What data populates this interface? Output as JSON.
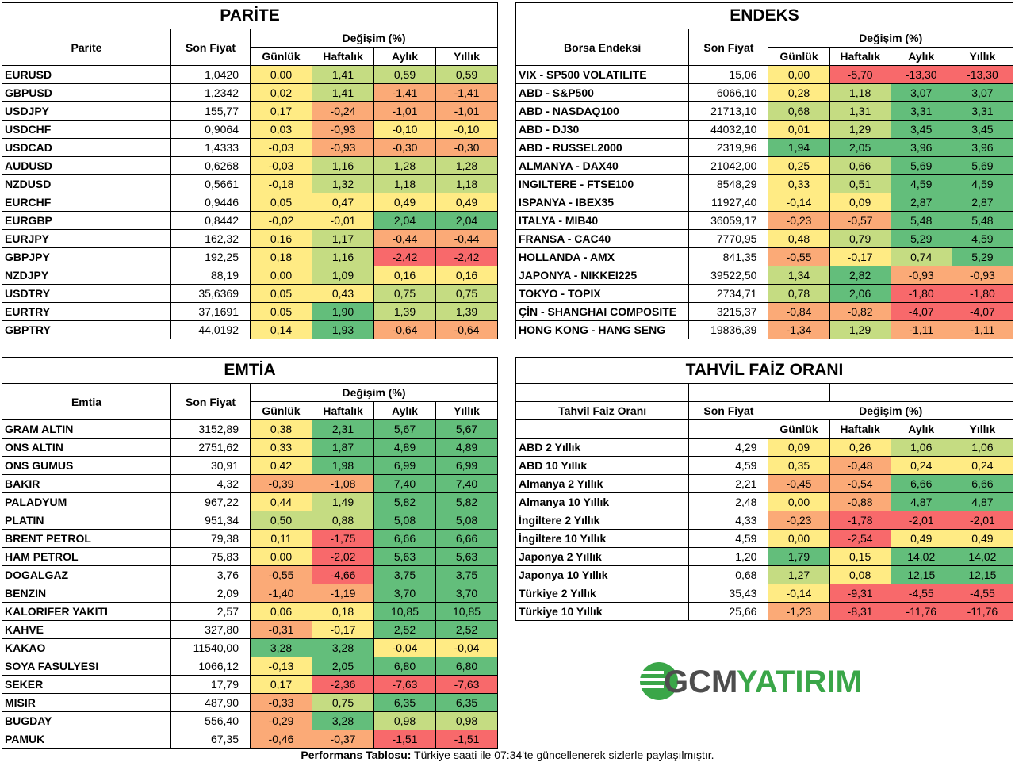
{
  "headers": {
    "son_fiyat": "Son Fiyat",
    "degisim": "Değişim (%)",
    "periods": [
      "Günlük",
      "Haftalık",
      "Aylık",
      "Yıllık"
    ]
  },
  "colors": {
    "red": "#f8696b",
    "orange": "#fbaa77",
    "yellow": "#ffeb84",
    "light_green": "#c5dc82",
    "green": "#63be7b"
  },
  "parite": {
    "title": "PARİTE",
    "name_header": "Parite",
    "rows": [
      {
        "name": "EURUSD",
        "price": "1,0420",
        "d": "0,00",
        "w": "1,41",
        "m": "0,59",
        "y": "0,59"
      },
      {
        "name": "GBPUSD",
        "price": "1,2342",
        "d": "0,02",
        "w": "1,41",
        "m": "-1,41",
        "y": "-1,41"
      },
      {
        "name": "USDJPY",
        "price": "155,77",
        "d": "0,17",
        "w": "-0,24",
        "m": "-1,01",
        "y": "-1,01"
      },
      {
        "name": "USDCHF",
        "price": "0,9064",
        "d": "0,03",
        "w": "-0,93",
        "m": "-0,10",
        "y": "-0,10"
      },
      {
        "name": "USDCAD",
        "price": "1,4333",
        "d": "-0,03",
        "w": "-0,93",
        "m": "-0,30",
        "y": "-0,30"
      },
      {
        "name": "AUDUSD",
        "price": "0,6268",
        "d": "-0,03",
        "w": "1,16",
        "m": "1,28",
        "y": "1,28"
      },
      {
        "name": "NZDUSD",
        "price": "0,5661",
        "d": "-0,18",
        "w": "1,32",
        "m": "1,18",
        "y": "1,18"
      },
      {
        "name": "EURCHF",
        "price": "0,9446",
        "d": "0,05",
        "w": "0,47",
        "m": "0,49",
        "y": "0,49"
      },
      {
        "name": "EURGBP",
        "price": "0,8442",
        "d": "-0,02",
        "w": "-0,01",
        "m": "2,04",
        "y": "2,04"
      },
      {
        "name": "EURJPY",
        "price": "162,32",
        "d": "0,16",
        "w": "1,17",
        "m": "-0,44",
        "y": "-0,44"
      },
      {
        "name": "GBPJPY",
        "price": "192,25",
        "d": "0,18",
        "w": "1,16",
        "m": "-2,42",
        "y": "-2,42"
      },
      {
        "name": "NZDJPY",
        "price": "88,19",
        "d": "0,00",
        "w": "1,09",
        "m": "0,16",
        "y": "0,16"
      },
      {
        "name": "USDTRY",
        "price": "35,6369",
        "d": "0,05",
        "w": "0,43",
        "m": "0,75",
        "y": "0,75"
      },
      {
        "name": "EURTRY",
        "price": "37,1691",
        "d": "0,05",
        "w": "1,90",
        "m": "1,39",
        "y": "1,39"
      },
      {
        "name": "GBPTRY",
        "price": "44,0192",
        "d": "0,14",
        "w": "1,93",
        "m": "-0,64",
        "y": "-0,64"
      }
    ]
  },
  "endeks": {
    "title": "ENDEKS",
    "name_header": "Borsa Endeksi",
    "rows": [
      {
        "name": "VIX  - SP500 VOLATILITE",
        "price": "15,06",
        "d": "0,00",
        "w": "-5,70",
        "m": "-13,30",
        "y": "-13,30"
      },
      {
        "name": "ABD - S&P500",
        "price": "6066,10",
        "d": "0,28",
        "w": "1,18",
        "m": "3,07",
        "y": "3,07"
      },
      {
        "name": "ABD - NASDAQ100",
        "price": "21713,10",
        "d": "0,68",
        "w": "1,31",
        "m": "3,31",
        "y": "3,31"
      },
      {
        "name": "ABD - DJ30",
        "price": "44032,10",
        "d": "0,01",
        "w": "1,29",
        "m": "3,45",
        "y": "3,45"
      },
      {
        "name": "ABD - RUSSEL2000",
        "price": "2319,96",
        "d": "1,94",
        "w": "2,05",
        "m": "3,96",
        "y": "3,96"
      },
      {
        "name": "ALMANYA - DAX40",
        "price": "21042,00",
        "d": "0,25",
        "w": "0,66",
        "m": "5,69",
        "y": "5,69"
      },
      {
        "name": "INGILTERE - FTSE100",
        "price": "8548,29",
        "d": "0,33",
        "w": "0,51",
        "m": "4,59",
        "y": "4,59"
      },
      {
        "name": "ISPANYA - IBEX35",
        "price": "11927,40",
        "d": "-0,14",
        "w": "0,09",
        "m": "2,87",
        "y": "2,87"
      },
      {
        "name": "ITALYA - MIB40",
        "price": "36059,17",
        "d": "-0,23",
        "w": "-0,57",
        "m": "5,48",
        "y": "5,48"
      },
      {
        "name": "FRANSA - CAC40",
        "price": "7770,95",
        "d": "0,48",
        "w": "0,79",
        "m": "5,29",
        "y": "4,59"
      },
      {
        "name": "HOLLANDA - AMX",
        "price": "841,35",
        "d": "-0,55",
        "w": "-0,17",
        "m": "0,74",
        "y": "5,29"
      },
      {
        "name": "JAPONYA - NIKKEI225",
        "price": "39522,50",
        "d": "1,34",
        "w": "2,82",
        "m": "-0,93",
        "y": "-0,93"
      },
      {
        "name": "TOKYO - TOPIX",
        "price": "2734,71",
        "d": "0,78",
        "w": "2,06",
        "m": "-1,80",
        "y": "-1,80"
      },
      {
        "name": "ÇİN - SHANGHAI COMPOSITE",
        "price": "3215,37",
        "d": "-0,84",
        "w": "-0,82",
        "m": "-4,07",
        "y": "-4,07"
      },
      {
        "name": "HONG KONG - HANG SENG",
        "price": "19836,39",
        "d": "-1,34",
        "w": "1,29",
        "m": "-1,11",
        "y": "-1,11"
      }
    ]
  },
  "emtia": {
    "title": "EMTİA",
    "name_header": "Emtia",
    "rows": [
      {
        "name": "GRAM ALTIN",
        "price": "3152,89",
        "d": "0,38",
        "w": "2,31",
        "m": "5,67",
        "y": "5,67"
      },
      {
        "name": "ONS ALTIN",
        "price": "2751,62",
        "d": "0,33",
        "w": "1,87",
        "m": "4,89",
        "y": "4,89"
      },
      {
        "name": "ONS GUMUS",
        "price": "30,91",
        "d": "0,42",
        "w": "1,98",
        "m": "6,99",
        "y": "6,99"
      },
      {
        "name": "BAKIR",
        "price": "4,32",
        "d": "-0,39",
        "w": "-1,08",
        "m": "7,40",
        "y": "7,40"
      },
      {
        "name": "PALADYUM",
        "price": "967,22",
        "d": "0,44",
        "w": "1,49",
        "m": "5,82",
        "y": "5,82"
      },
      {
        "name": "PLATIN",
        "price": "951,34",
        "d": "0,50",
        "w": "0,88",
        "m": "5,08",
        "y": "5,08"
      },
      {
        "name": "BRENT PETROL",
        "price": "79,38",
        "d": "0,11",
        "w": "-1,75",
        "m": "6,66",
        "y": "6,66"
      },
      {
        "name": "HAM PETROL",
        "price": "75,83",
        "d": "0,00",
        "w": "-2,02",
        "m": "5,63",
        "y": "5,63"
      },
      {
        "name": "DOGALGAZ",
        "price": "3,76",
        "d": "-0,55",
        "w": "-4,66",
        "m": "3,75",
        "y": "3,75"
      },
      {
        "name": "BENZIN",
        "price": "2,09",
        "d": "-1,40",
        "w": "-1,19",
        "m": "3,70",
        "y": "3,70"
      },
      {
        "name": "KALORIFER YAKITI",
        "price": "2,57",
        "d": "0,06",
        "w": "0,18",
        "m": "10,85",
        "y": "10,85"
      },
      {
        "name": "KAHVE",
        "price": "327,80",
        "d": "-0,31",
        "w": "-0,17",
        "m": "2,52",
        "y": "2,52"
      },
      {
        "name": "KAKAO",
        "price": "11540,00",
        "d": "3,28",
        "w": "3,28",
        "m": "-0,04",
        "y": "-0,04"
      },
      {
        "name": "SOYA FASULYESI",
        "price": "1066,12",
        "d": "-0,13",
        "w": "2,05",
        "m": "6,80",
        "y": "6,80"
      },
      {
        "name": "SEKER",
        "price": "17,79",
        "d": "0,17",
        "w": "-2,36",
        "m": "-7,63",
        "y": "-7,63"
      },
      {
        "name": "MISIR",
        "price": "487,90",
        "d": "-0,33",
        "w": "0,75",
        "m": "6,35",
        "y": "6,35"
      },
      {
        "name": "BUGDAY",
        "price": "556,40",
        "d": "-0,29",
        "w": "3,28",
        "m": "0,98",
        "y": "0,98"
      },
      {
        "name": "PAMUK",
        "price": "67,35",
        "d": "-0,46",
        "w": "-0,37",
        "m": "-1,51",
        "y": "-1,51"
      }
    ]
  },
  "tahvil": {
    "title": "TAHVİL FAİZ ORANI",
    "name_header": "Tahvil Faiz Oranı",
    "rows": [
      {
        "name": "ABD 2 Yıllık",
        "price": "4,29",
        "d": "0,09",
        "w": "0,26",
        "m": "1,06",
        "y": "1,06"
      },
      {
        "name": "ABD 10 Yıllık",
        "price": "4,59",
        "d": "0,35",
        "w": "-0,48",
        "m": "0,24",
        "y": "0,24"
      },
      {
        "name": "Almanya 2 Yıllık",
        "price": "2,21",
        "d": "-0,45",
        "w": "-0,54",
        "m": "6,66",
        "y": "6,66"
      },
      {
        "name": "Almanya 10 Yıllık",
        "price": "2,48",
        "d": "0,00",
        "w": "-0,88",
        "m": "4,87",
        "y": "4,87"
      },
      {
        "name": "İngiltere 2 Yıllık",
        "price": "4,33",
        "d": "-0,23",
        "w": "-1,78",
        "m": "-2,01",
        "y": "-2,01"
      },
      {
        "name": "İngiltere 10 Yıllık",
        "price": "4,59",
        "d": "0,00",
        "w": "-2,54",
        "m": "0,49",
        "y": "0,49"
      },
      {
        "name": "Japonya 2 Yıllık",
        "price": "1,20",
        "d": "1,79",
        "w": "0,15",
        "m": "14,02",
        "y": "14,02"
      },
      {
        "name": "Japonya 10 Yıllık",
        "price": "0,68",
        "d": "1,27",
        "w": "0,08",
        "m": "12,15",
        "y": "12,15"
      },
      {
        "name": "Türkiye 2 Yıllık",
        "price": "35,43",
        "d": "-0,14",
        "w": "-9,31",
        "m": "-4,55",
        "y": "-4,55"
      },
      {
        "name": "Türkiye 10 Yıllık",
        "price": "25,66",
        "d": "-1,23",
        "w": "-8,31",
        "m": "-11,76",
        "y": "-11,76"
      }
    ]
  },
  "logo": {
    "left": "GCM",
    "right": "YATIRIM"
  },
  "footer": {
    "bold": "Performans Tablosu:",
    "text": " Türkiye saati ile 07:34'te güncellenerek sizlerle paylaşılmıştır."
  }
}
